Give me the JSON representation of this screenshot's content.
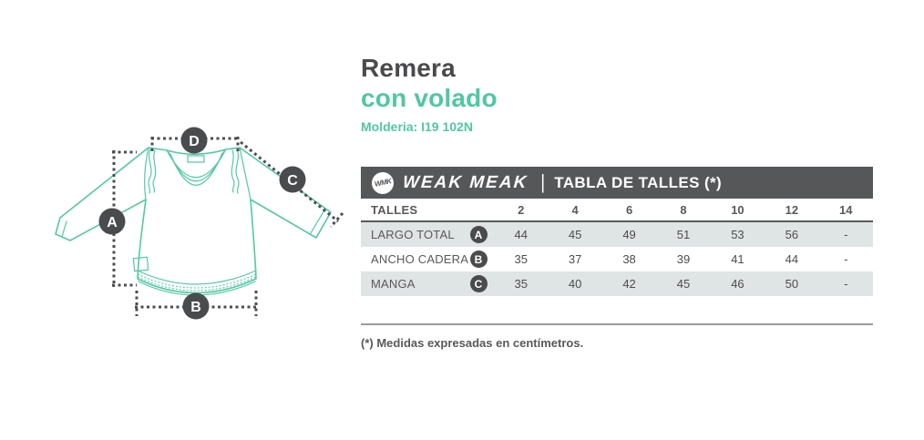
{
  "header": {
    "title": "Remera",
    "subtitle": "con volado",
    "pattern_ref": "Molderia: I19 102N"
  },
  "brand_bar": {
    "logo_monogram": "WMK",
    "brand_name": "WEAK MEAK",
    "separator": "|",
    "table_title": "TABLA DE TALLES (*)"
  },
  "size_table": {
    "header_label": "TALLES",
    "sizes": [
      "2",
      "4",
      "6",
      "8",
      "10",
      "12",
      "14"
    ],
    "rows": [
      {
        "label": "LARGO TOTAL",
        "badge": "A",
        "values": [
          "44",
          "45",
          "49",
          "51",
          "53",
          "56",
          "-"
        ]
      },
      {
        "label": "ANCHO CADERA",
        "badge": "B",
        "values": [
          "35",
          "37",
          "38",
          "39",
          "41",
          "44",
          "-"
        ]
      },
      {
        "label": "MANGA",
        "badge": "C",
        "values": [
          "35",
          "40",
          "42",
          "45",
          "46",
          "50",
          "-"
        ]
      }
    ]
  },
  "diagram": {
    "garment": "remera manga larga con volado",
    "measure_labels": {
      "a": "A",
      "b": "B",
      "c": "C",
      "d": "D"
    }
  },
  "footnote": "(*) Medidas expresadas en centímetros.",
  "colors": {
    "accent_green": "#4fc8a1",
    "title_dark": "#4a4a4c",
    "bar_background": "#565759",
    "row_alternate": "#dfe4e5",
    "measure_dark": "#4a4b4d"
  }
}
